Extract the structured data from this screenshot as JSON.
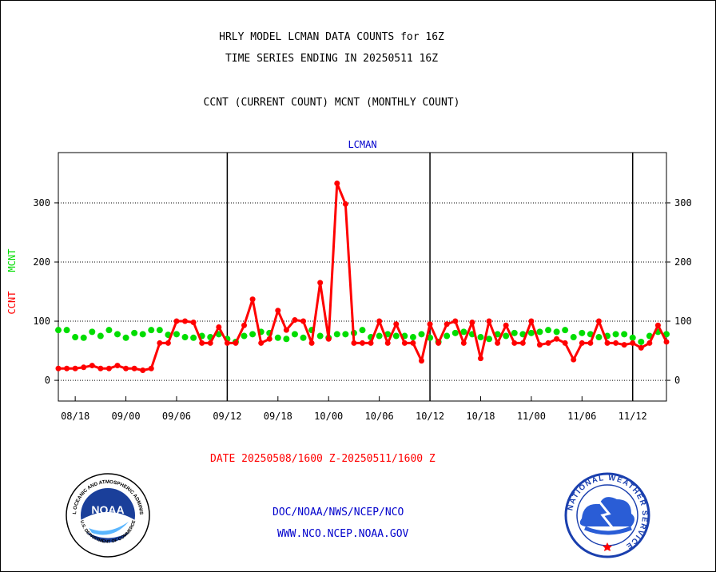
{
  "titles": {
    "line1": "HRLY MODEL LCMAN DATA COUNTS for 16Z",
    "line2": "TIME SERIES ENDING IN 20250511 16Z",
    "line3": "CCNT (CURRENT COUNT) MCNT (MONTHLY COUNT)"
  },
  "ylabel_ccnt": "CCNT",
  "ylabel_mcnt": "MCNT",
  "date_range": "DATE 20250508/1600 Z-20250511/1600 Z",
  "footer": {
    "line1": "DOC/NOAA/NWS/NCEP/NCO",
    "line2": "WWW.NCO.NCEP.NOAA.GOV"
  },
  "logos": {
    "noaa_center": "NOAA",
    "noaa_ring": "NATIONAL OCEANIC AND ATMOSPHERIC ADMINISTRATION",
    "noaa_ring_bottom": "U.S. DEPARTMENT OF COMMERCE",
    "nws_ring": "NATIONAL WEATHER SERVICE"
  },
  "colors": {
    "ccnt": "#ff0000",
    "mcnt": "#00dd00",
    "plot_title": "#0000cc",
    "footer": "#0000cc"
  },
  "chart_data": {
    "type": "line",
    "title": "LCMAN",
    "xlabel": "",
    "ylabel": "CCNT  MCNT",
    "ylim": [
      -35,
      385
    ],
    "yticks": [
      0,
      100,
      200,
      300
    ],
    "xlim": [
      0,
      72
    ],
    "x_tick_labels": [
      "08/18",
      "09/00",
      "09/06",
      "09/12",
      "09/18",
      "10/00",
      "10/06",
      "10/12",
      "10/18",
      "11/00",
      "11/06",
      "11/12"
    ],
    "x_tick_positions": [
      2,
      8,
      14,
      20,
      26,
      32,
      38,
      44,
      50,
      56,
      62,
      68
    ],
    "day_boundaries": [
      20,
      44,
      68
    ],
    "grid": true,
    "series": [
      {
        "name": "CCNT",
        "values": [
          20,
          20,
          20,
          22,
          25,
          20,
          20,
          25,
          20,
          20,
          17,
          20,
          63,
          63,
          100,
          100,
          98,
          63,
          63,
          90,
          63,
          63,
          93,
          137,
          63,
          70,
          118,
          85,
          102,
          100,
          63,
          165,
          70,
          333,
          298,
          63,
          63,
          63,
          100,
          63,
          95,
          63,
          63,
          33,
          95,
          63,
          95,
          100,
          63,
          98,
          37,
          100,
          63,
          93,
          63,
          63,
          100,
          60,
          63,
          70,
          63,
          35,
          63,
          63,
          100,
          63,
          63,
          60,
          63,
          55,
          63,
          93,
          65
        ]
      },
      {
        "name": "MCNT",
        "values": [
          85,
          85,
          73,
          72,
          82,
          75,
          85,
          78,
          72,
          80,
          78,
          85,
          85,
          77,
          78,
          73,
          72,
          75,
          73,
          78,
          70,
          65,
          75,
          78,
          82,
          80,
          72,
          70,
          78,
          72,
          85,
          75,
          72,
          78,
          78,
          80,
          85,
          73,
          75,
          78,
          75,
          75,
          73,
          78,
          72,
          65,
          75,
          80,
          82,
          78,
          73,
          70,
          78,
          75,
          80,
          78,
          80,
          82,
          85,
          82,
          85,
          73,
          80,
          78,
          73,
          75,
          78,
          78,
          72,
          65,
          75,
          82,
          78
        ]
      }
    ]
  }
}
